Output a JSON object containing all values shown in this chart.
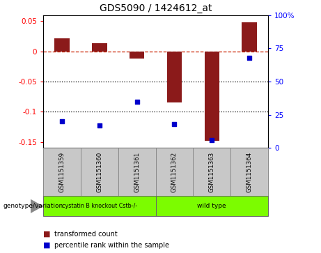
{
  "title": "GDS5090 / 1424612_at",
  "samples": [
    "GSM1151359",
    "GSM1151360",
    "GSM1151361",
    "GSM1151362",
    "GSM1151363",
    "GSM1151364"
  ],
  "bar_values": [
    0.022,
    0.013,
    -0.012,
    -0.085,
    -0.148,
    0.048
  ],
  "dot_values_pct": [
    20,
    17,
    35,
    18,
    6,
    68
  ],
  "ylim_left": [
    -0.16,
    0.06
  ],
  "ylim_right": [
    0,
    100
  ],
  "yticks_left": [
    0.05,
    0.0,
    -0.05,
    -0.1,
    -0.15
  ],
  "ytick_labels_left": [
    "0.05",
    "0",
    "-0.05",
    "-0.1",
    "-0.15"
  ],
  "yticks_right": [
    100,
    75,
    50,
    25,
    0
  ],
  "hline_y": 0.0,
  "dotted_lines": [
    -0.05,
    -0.1
  ],
  "bar_color": "#8B1A1A",
  "dot_color": "#0000CC",
  "group1_label": "cystatin B knockout Cstb-/-",
  "group2_label": "wild type",
  "group_color": "#7CFC00",
  "sample_box_color": "#C8C8C8",
  "xlabel_group": "genotype/variation",
  "legend_bar": "transformed count",
  "legend_dot": "percentile rank within the sample",
  "title_fontsize": 10,
  "tick_fontsize": 7.5,
  "label_fontsize": 7,
  "legend_fontsize": 7
}
